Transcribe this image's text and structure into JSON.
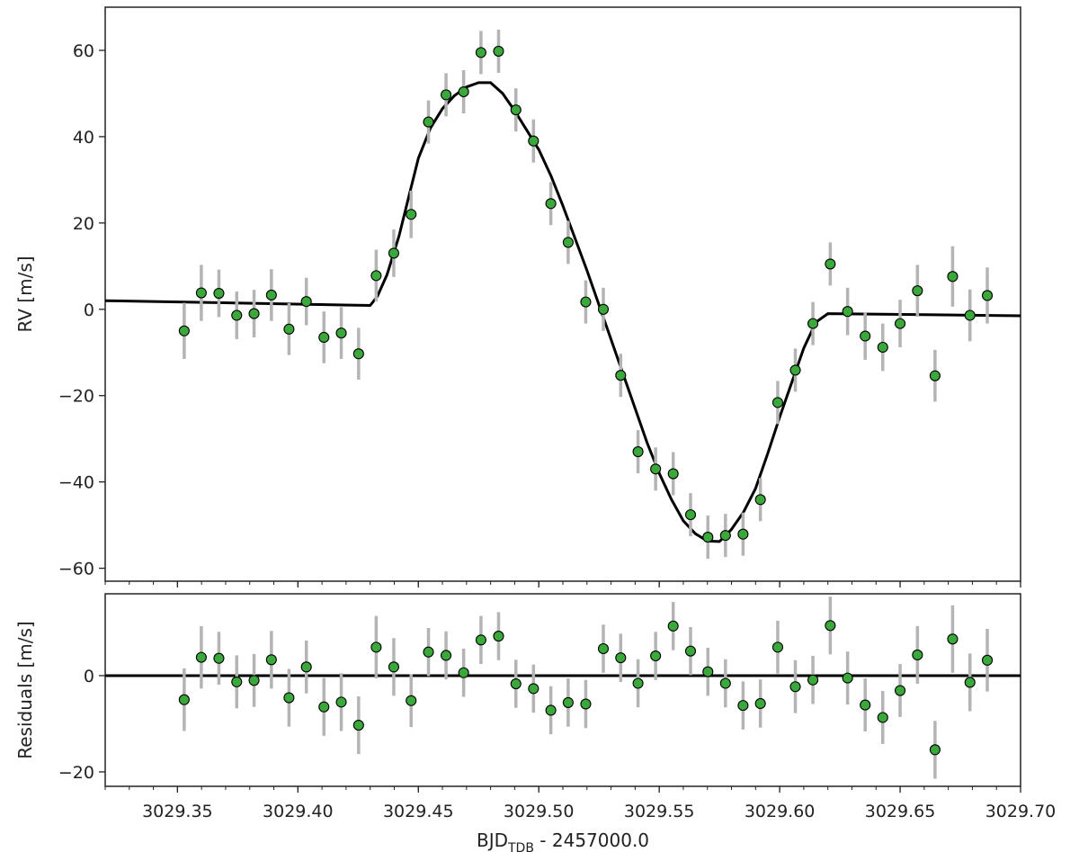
{
  "chart_data": [
    {
      "type": "scatter",
      "ylabel": "RV [m/s]",
      "xlim": [
        3029.32,
        3029.7
      ],
      "ylim": [
        -63,
        70
      ],
      "yticks": [
        -60,
        -40,
        -20,
        0,
        20,
        40,
        60
      ],
      "ytick_labels": [
        "−60",
        "−40",
        "−20",
        "0",
        "20",
        "40",
        "60"
      ],
      "marker_color": "#3aa83a",
      "errorbar_color": "#b4b4b4",
      "model_color": "#000000",
      "series": [
        {
          "x": [
            3029.3528,
            3029.3599,
            3029.3672,
            3029.3746,
            3029.3818,
            3029.389,
            3029.3963,
            3029.4035,
            3029.4108,
            3029.418,
            3029.4252,
            3029.4325,
            3029.4398,
            3029.447,
            3029.4542,
            3029.4615,
            3029.4688,
            3029.476,
            3029.4833,
            3029.4905,
            3029.4978,
            3029.505,
            3029.5122,
            3029.5195,
            3029.5268,
            3029.534,
            3029.5412,
            3029.5485,
            3029.5558,
            3029.563,
            3029.5702,
            3029.5775,
            3029.5848,
            3029.592,
            3029.5992,
            3029.6065,
            3029.6138,
            3029.621,
            3029.6282,
            3029.6355,
            3029.6428,
            3029.65,
            3029.6572,
            3029.6645,
            3029.6718,
            3029.679,
            3029.6862
          ],
          "y": [
            -5,
            3.8,
            3.7,
            -1.4,
            -1,
            3.3,
            -4.6,
            1.8,
            -6.5,
            -5.5,
            -10.3,
            7.8,
            13,
            22,
            43.4,
            49.7,
            50.4,
            59.5,
            59.8,
            46.2,
            39,
            24.5,
            15.5,
            1.7,
            0,
            -15.3,
            -33,
            -37,
            -38.1,
            -47.6,
            -52.8,
            -52.4,
            -52.1,
            -44.1,
            -21.6,
            -14.1,
            -3.3,
            10.5,
            -0.5,
            -6.2,
            -8.8,
            -3.3,
            4.3,
            -15.4,
            7.6,
            -1.4,
            3.2
          ],
          "yerr": [
            6.5,
            6.5,
            5.5,
            5.5,
            5.5,
            6,
            6,
            5.5,
            6,
            6,
            6,
            6,
            5.5,
            5.5,
            5,
            5,
            5,
            5,
            5,
            5,
            5,
            5,
            5,
            5,
            5,
            5,
            5,
            5,
            5,
            5,
            5,
            5,
            5,
            5,
            5,
            5,
            5,
            5,
            5.5,
            5.5,
            5.5,
            5.5,
            6,
            6,
            7,
            6,
            6.5
          ]
        }
      ],
      "model": {
        "x": [
          3029.32,
          3029.43,
          3029.433,
          3029.437,
          3029.442,
          3029.446,
          3029.45,
          3029.455,
          3029.46,
          3029.465,
          3029.47,
          3029.475,
          3029.48,
          3029.485,
          3029.49,
          3029.495,
          3029.5,
          3029.505,
          3029.51,
          3029.515,
          3029.52,
          3029.525,
          3029.53,
          3029.535,
          3029.54,
          3029.545,
          3029.55,
          3029.555,
          3029.56,
          3029.565,
          3029.57,
          3029.575,
          3029.58,
          3029.585,
          3029.59,
          3029.595,
          3029.6,
          3029.605,
          3029.61,
          3029.615,
          3029.62,
          3029.7
        ],
        "y": [
          2,
          0.9,
          3,
          8,
          17,
          26,
          35,
          42,
          46.5,
          49.5,
          51.5,
          52.5,
          52.5,
          50,
          46,
          41.5,
          37,
          31,
          24,
          16.5,
          9,
          1,
          -7,
          -15,
          -23,
          -31,
          -38,
          -44,
          -49,
          -52,
          -53.7,
          -53.8,
          -51,
          -47,
          -41.5,
          -33.5,
          -25,
          -17,
          -9,
          -3,
          -1,
          -1.5
        ]
      }
    },
    {
      "type": "scatter",
      "ylabel": "Residuals [m/s]",
      "xlabel_main": "BJD",
      "xlabel_sub": "TDB",
      "xlabel_rest": " - 2457000.0",
      "xlim": [
        3029.32,
        3029.7
      ],
      "ylim": [
        -23,
        17
      ],
      "xticks": [
        3029.35,
        3029.4,
        3029.45,
        3029.5,
        3029.55,
        3029.6,
        3029.65,
        3029.7
      ],
      "xtick_labels": [
        "3029.35",
        "3029.40",
        "3029.45",
        "3029.50",
        "3029.55",
        "3029.60",
        "3029.65",
        "3029.70"
      ],
      "yticks": [
        -20,
        0
      ],
      "ytick_labels": [
        "−20",
        "0"
      ],
      "zero_line": 0,
      "series": [
        {
          "x": [
            3029.3528,
            3029.3599,
            3029.3672,
            3029.3746,
            3029.3818,
            3029.389,
            3029.3963,
            3029.4035,
            3029.4108,
            3029.418,
            3029.4252,
            3029.4325,
            3029.4398,
            3029.447,
            3029.4542,
            3029.4615,
            3029.4688,
            3029.476,
            3029.4833,
            3029.4905,
            3029.4978,
            3029.505,
            3029.5122,
            3029.5195,
            3029.5268,
            3029.534,
            3029.5412,
            3029.5485,
            3029.5558,
            3029.563,
            3029.5702,
            3029.5775,
            3029.5848,
            3029.592,
            3029.5992,
            3029.6065,
            3029.6138,
            3029.621,
            3029.6282,
            3029.6355,
            3029.6428,
            3029.65,
            3029.6572,
            3029.6645,
            3029.6718,
            3029.679,
            3029.6862
          ],
          "y": [
            -5,
            3.8,
            3.6,
            -1.3,
            -1,
            3.3,
            -4.6,
            1.8,
            -6.5,
            -5.5,
            -10.3,
            5.9,
            1.8,
            -5.2,
            4.9,
            4.2,
            0.6,
            7.4,
            8.2,
            -1.7,
            -2.7,
            -7.2,
            -5.6,
            -5.9,
            5.6,
            3.7,
            -1.6,
            4.1,
            10.3,
            5.1,
            0.8,
            -1.6,
            -6.2,
            -5.8,
            5.9,
            -2.3,
            -0.9,
            10.4,
            -0.5,
            -6.1,
            -8.7,
            -3.1,
            4.3,
            -15.4,
            7.6,
            -1.4,
            3.2
          ],
          "yerr": [
            6.5,
            6.5,
            5.5,
            5.5,
            5.5,
            6,
            6,
            5.5,
            6,
            6,
            6,
            6.5,
            6,
            5.5,
            5,
            5,
            5,
            5,
            5,
            5,
            5,
            5,
            5,
            5,
            5,
            5,
            5,
            5,
            5,
            5,
            5,
            5,
            5,
            5,
            5.5,
            5.5,
            5,
            6,
            5.5,
            5.5,
            5.5,
            5.5,
            6,
            6,
            7,
            6,
            6.5
          ]
        }
      ]
    }
  ]
}
